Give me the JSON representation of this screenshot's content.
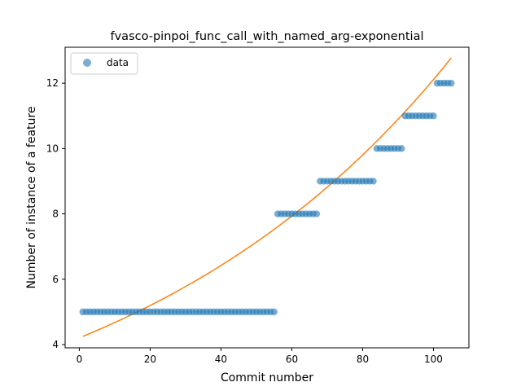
{
  "chart_data": {
    "type": "scatter",
    "title": "fvasco-pinpoi_func_call_with_named_arg-exponential",
    "xlabel": "Commit number",
    "ylabel": "Number of instance of a feature",
    "xlim": [
      -4,
      110
    ],
    "ylim": [
      3.9,
      13.1
    ],
    "xticks": [
      0,
      20,
      40,
      60,
      80,
      100
    ],
    "yticks": [
      4,
      6,
      8,
      10,
      12
    ],
    "legend": {
      "entries": [
        "data"
      ],
      "placement": "top-left"
    },
    "colors": {
      "data": "#1f77b4",
      "fit": "#ff7f0e"
    },
    "series": [
      {
        "name": "data",
        "kind": "scatter",
        "segments": [
          {
            "x_from": 1,
            "x_to": 55,
            "y": 5
          },
          {
            "x_from": 56,
            "x_to": 67,
            "y": 8
          },
          {
            "x_from": 68,
            "x_to": 83,
            "y": 9
          },
          {
            "x_from": 84,
            "x_to": 91,
            "y": 10
          },
          {
            "x_from": 92,
            "x_to": 100,
            "y": 11
          },
          {
            "x_from": 101,
            "x_to": 105,
            "y": 12
          }
        ]
      },
      {
        "kind": "line",
        "model": "exponential",
        "x_range": [
          1,
          105
        ],
        "a": 4.205,
        "b": 0.01058
      }
    ]
  }
}
